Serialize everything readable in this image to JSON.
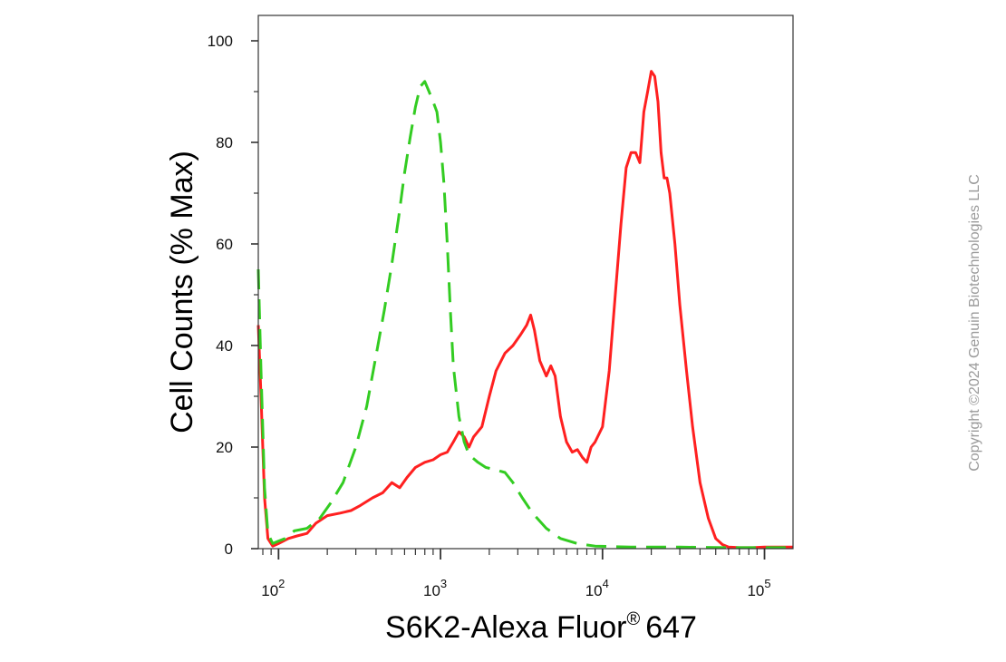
{
  "chart_data": {
    "type": "line",
    "title": "",
    "xlabel_main": "S6K2-Alexa Fluor",
    "xlabel_reg": "®",
    "xlabel_tail": "647",
    "ylabel": "Cell Counts (% Max)",
    "x_scale": "log",
    "xlim": [
      75,
      150000
    ],
    "ylim": [
      0,
      100
    ],
    "grid": false,
    "legend": "none",
    "y_ticks": [
      "0",
      "20",
      "40",
      "60",
      "80",
      "100"
    ],
    "x_tick_values": [
      100,
      1000,
      10000,
      100000
    ],
    "x_tick_exponents": [
      "2",
      "3",
      "4",
      "5"
    ],
    "x_tick_base": "10",
    "series": [
      {
        "color": "#ff2020",
        "dash": false,
        "points": [
          [
            75,
            44
          ],
          [
            78,
            30
          ],
          [
            82,
            10
          ],
          [
            86,
            2
          ],
          [
            92,
            0.5
          ],
          [
            100,
            1
          ],
          [
            115,
            2
          ],
          [
            130,
            2.5
          ],
          [
            150,
            3
          ],
          [
            170,
            5
          ],
          [
            200,
            6.5
          ],
          [
            240,
            7
          ],
          [
            280,
            7.5
          ],
          [
            320,
            8.5
          ],
          [
            380,
            10
          ],
          [
            440,
            11
          ],
          [
            500,
            13
          ],
          [
            560,
            12
          ],
          [
            620,
            14
          ],
          [
            700,
            16
          ],
          [
            800,
            17
          ],
          [
            900,
            17.5
          ],
          [
            1000,
            18.5
          ],
          [
            1100,
            19
          ],
          [
            1200,
            21
          ],
          [
            1300,
            23
          ],
          [
            1400,
            22
          ],
          [
            1500,
            20
          ],
          [
            1600,
            22
          ],
          [
            1800,
            24
          ],
          [
            2000,
            30
          ],
          [
            2200,
            35
          ],
          [
            2500,
            38.5
          ],
          [
            2800,
            40
          ],
          [
            3100,
            42
          ],
          [
            3400,
            44
          ],
          [
            3600,
            46
          ],
          [
            3800,
            43
          ],
          [
            4100,
            37
          ],
          [
            4500,
            34
          ],
          [
            4800,
            36
          ],
          [
            5100,
            34
          ],
          [
            5500,
            26
          ],
          [
            6000,
            21
          ],
          [
            6500,
            19
          ],
          [
            7000,
            19.5
          ],
          [
            7500,
            18
          ],
          [
            8000,
            17
          ],
          [
            8500,
            20
          ],
          [
            9000,
            21
          ],
          [
            10000,
            24
          ],
          [
            11000,
            35
          ],
          [
            12000,
            50
          ],
          [
            13000,
            64
          ],
          [
            14000,
            75
          ],
          [
            15000,
            78
          ],
          [
            16000,
            78
          ],
          [
            17000,
            76
          ],
          [
            18000,
            86
          ],
          [
            19000,
            90
          ],
          [
            20000,
            94
          ],
          [
            21000,
            93
          ],
          [
            22000,
            88
          ],
          [
            23000,
            78
          ],
          [
            24000,
            73
          ],
          [
            25000,
            73
          ],
          [
            26000,
            70
          ],
          [
            28000,
            60
          ],
          [
            30000,
            48
          ],
          [
            33000,
            35
          ],
          [
            36000,
            24
          ],
          [
            40000,
            13
          ],
          [
            45000,
            6
          ],
          [
            50000,
            2
          ],
          [
            55000,
            0.8
          ],
          [
            60000,
            0.3
          ],
          [
            70000,
            0.2
          ],
          [
            85000,
            0.2
          ],
          [
            100000,
            0.3
          ],
          [
            120000,
            0.3
          ],
          [
            150000,
            0.3
          ]
        ]
      },
      {
        "color": "#33cc22",
        "dash": true,
        "points": [
          [
            75,
            55
          ],
          [
            78,
            35
          ],
          [
            82,
            12
          ],
          [
            86,
            3
          ],
          [
            92,
            1
          ],
          [
            100,
            1.5
          ],
          [
            110,
            2
          ],
          [
            125,
            3.5
          ],
          [
            150,
            4
          ],
          [
            180,
            6
          ],
          [
            210,
            9
          ],
          [
            250,
            13
          ],
          [
            300,
            20
          ],
          [
            350,
            28
          ],
          [
            400,
            38
          ],
          [
            450,
            47
          ],
          [
            500,
            56
          ],
          [
            550,
            65
          ],
          [
            600,
            74
          ],
          [
            650,
            81
          ],
          [
            700,
            87
          ],
          [
            750,
            91
          ],
          [
            800,
            92
          ],
          [
            850,
            90
          ],
          [
            900,
            88
          ],
          [
            950,
            86
          ],
          [
            1000,
            80
          ],
          [
            1050,
            72
          ],
          [
            1100,
            60
          ],
          [
            1150,
            47
          ],
          [
            1200,
            36
          ],
          [
            1300,
            26
          ],
          [
            1400,
            21
          ],
          [
            1500,
            18.5
          ],
          [
            1700,
            17
          ],
          [
            1900,
            16
          ],
          [
            2200,
            15.5
          ],
          [
            2500,
            15
          ],
          [
            2800,
            13
          ],
          [
            3200,
            10
          ],
          [
            3700,
            7
          ],
          [
            4500,
            4
          ],
          [
            5500,
            2
          ],
          [
            7000,
            1
          ],
          [
            9000,
            0.5
          ],
          [
            15000,
            0.3
          ],
          [
            30000,
            0.3
          ],
          [
            60000,
            0.2
          ],
          [
            100000,
            0.2
          ],
          [
            150000,
            0.2
          ]
        ]
      }
    ]
  },
  "copyright": "Copyright ©2024 Genuin Biotechnologies LLC"
}
